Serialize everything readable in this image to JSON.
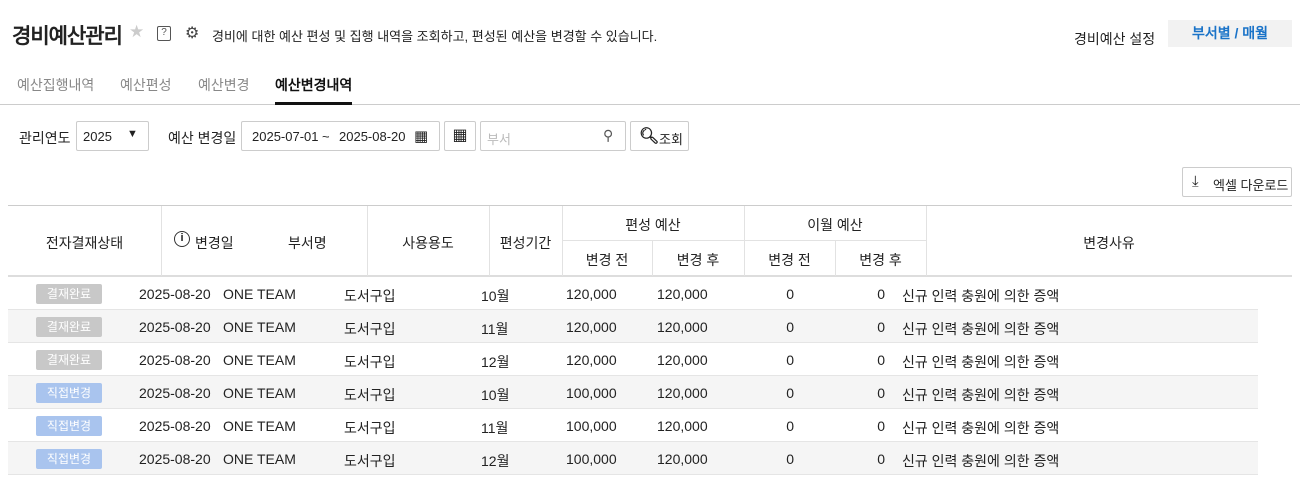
{
  "header": {
    "title": "경비예산관리",
    "description": "경비에 대한 예산 편성 및 집행 내역을 조회하고, 편성된 예산을 변경할 수 있습니다.",
    "settings_label": "경비예산 설정",
    "settings_button": "부서별 / 매월"
  },
  "tabs": [
    {
      "label": "예산집행내역"
    },
    {
      "label": "예산편성"
    },
    {
      "label": "예산변경"
    },
    {
      "label": "예산변경내역",
      "active": true
    }
  ],
  "filters": {
    "year_label": "관리연도",
    "year_value": "2025",
    "date_label": "예산 변경일",
    "date_from": "2025-07-01",
    "date_sep": "~",
    "date_to": "2025-08-20",
    "dept_placeholder": "부서",
    "search_button": "조회"
  },
  "excel_button": "엑셀 다운로드",
  "table": {
    "headers": {
      "status": "전자결재상태",
      "date": "변경일",
      "dept": "부서명",
      "usage": "사용용도",
      "period": "편성기간",
      "budget_group": "편성 예산",
      "carry_group": "이월 예산",
      "before": "변경 전",
      "after": "변경 후",
      "reason": "변경사유"
    },
    "rows": [
      {
        "status": "결재완료",
        "date": "2025-08-20",
        "dept": "ONE TEAM",
        "usage": "도서구입",
        "period": "10월",
        "b_before": "120,000",
        "b_after": "120,000",
        "c_before": "0",
        "c_after": "0",
        "reason": "신규 인력 충원에 의한 증액"
      },
      {
        "status": "결재완료",
        "date": "2025-08-20",
        "dept": "ONE TEAM",
        "usage": "도서구입",
        "period": "11월",
        "b_before": "120,000",
        "b_after": "120,000",
        "c_before": "0",
        "c_after": "0",
        "reason": "신규 인력 충원에 의한 증액"
      },
      {
        "status": "결재완료",
        "date": "2025-08-20",
        "dept": "ONE TEAM",
        "usage": "도서구입",
        "period": "12월",
        "b_before": "120,000",
        "b_after": "120,000",
        "c_before": "0",
        "c_after": "0",
        "reason": "신규 인력 충원에 의한 증액"
      },
      {
        "status": "직접변경",
        "date": "2025-08-20",
        "dept": "ONE TEAM",
        "usage": "도서구입",
        "period": "10월",
        "b_before": "100,000",
        "b_after": "120,000",
        "c_before": "0",
        "c_after": "0",
        "reason": "신규 인력 충원에 의한 증액"
      },
      {
        "status": "직접변경",
        "date": "2025-08-20",
        "dept": "ONE TEAM",
        "usage": "도서구입",
        "period": "11월",
        "b_before": "100,000",
        "b_after": "120,000",
        "c_before": "0",
        "c_after": "0",
        "reason": "신규 인력 충원에 의한 증액"
      },
      {
        "status": "직접변경",
        "date": "2025-08-20",
        "dept": "ONE TEAM",
        "usage": "도서구입",
        "period": "12월",
        "b_before": "100,000",
        "b_after": "120,000",
        "c_before": "0",
        "c_after": "0",
        "reason": "신규 인력 충원에 의한 증액"
      }
    ]
  },
  "colors": {
    "accent": "#1a73c8",
    "status_done": "#c8c8c8",
    "status_direct": "#a9c4ee"
  }
}
